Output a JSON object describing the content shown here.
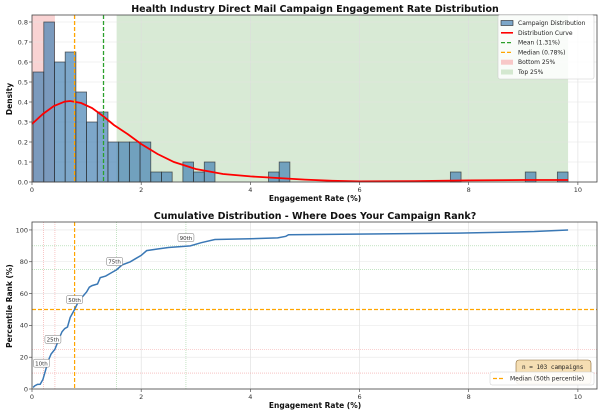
{
  "chart_data": [
    {
      "type": "bar",
      "title": "Health Industry Direct Mail Campaign Engagement Rate Distribution",
      "xlabel": "Engagement Rate (%)",
      "ylabel": "Density",
      "xlim": [
        0,
        10.35
      ],
      "ylim": [
        0,
        0.835
      ],
      "xticks": [
        0,
        2,
        4,
        6,
        8,
        10
      ],
      "yticks": [
        0.0,
        0.1,
        0.2,
        0.3,
        0.4,
        0.5,
        0.6,
        0.7,
        0.8
      ],
      "grid": true,
      "legend_position": "top-right",
      "histogram": {
        "bin_start": 0.02,
        "bin_width": 0.196,
        "densities": [
          0.55,
          0.8,
          0.6,
          0.65,
          0.45,
          0.3,
          0.35,
          0.2,
          0.2,
          0.2,
          0.2,
          0.05,
          0.05,
          0,
          0.1,
          0.05,
          0.1,
          0,
          0,
          0,
          0,
          0,
          0.05,
          0.1,
          0,
          0,
          0,
          0,
          0,
          0,
          0,
          0,
          0,
          0,
          0,
          0,
          0,
          0,
          0,
          0.05,
          0,
          0,
          0,
          0,
          0,
          0,
          0.05,
          0,
          0,
          0.05
        ],
        "color": "#4682b4"
      },
      "curve": {
        "x": [
          0,
          0.2,
          0.4,
          0.6,
          0.7,
          0.9,
          1.1,
          1.3,
          1.5,
          1.75,
          2.0,
          2.3,
          2.6,
          3.0,
          3.5,
          4.0,
          4.5,
          5.0,
          5.5,
          6.0,
          7.0,
          8.0,
          9.0,
          9.82
        ],
        "y": [
          0.29,
          0.34,
          0.38,
          0.402,
          0.405,
          0.395,
          0.37,
          0.33,
          0.285,
          0.24,
          0.19,
          0.14,
          0.1,
          0.065,
          0.04,
          0.028,
          0.02,
          0.012,
          0.006,
          0.003,
          0.004,
          0.008,
          0.01,
          0.01
        ],
        "color": "#ff0000"
      },
      "mean": 1.31,
      "median": 0.78,
      "bottom_25_range": [
        0,
        0.42
      ],
      "top_25_range": [
        1.55,
        9.82
      ],
      "legend": [
        "Campaign Distribution",
        "Distribution Curve",
        "Mean (1.31%)",
        "Median (0.78%)",
        "Bottom 25%",
        "Top 25%"
      ],
      "colors": {
        "mean": "#2ca02c",
        "median": "#ffa500",
        "bottom": "#f8c8c8",
        "top": "#d4e8d0"
      }
    },
    {
      "type": "line",
      "title": "Cumulative Distribution - Where Does Your Campaign Rank?",
      "xlabel": "Engagement Rate (%)",
      "ylabel": "Percentile Rank (%)",
      "xlim": [
        0,
        10.35
      ],
      "ylim": [
        0,
        105
      ],
      "xticks": [
        0,
        2,
        4,
        6,
        8,
        10
      ],
      "yticks": [
        0,
        20,
        40,
        60,
        80,
        100
      ],
      "grid": true,
      "legend_position": "bottom-right",
      "series": {
        "x": [
          0.02,
          0.05,
          0.1,
          0.15,
          0.2,
          0.25,
          0.3,
          0.35,
          0.42,
          0.5,
          0.55,
          0.6,
          0.65,
          0.7,
          0.78,
          0.85,
          0.95,
          1.0,
          1.05,
          1.1,
          1.2,
          1.25,
          1.35,
          1.45,
          1.55,
          1.65,
          1.8,
          1.9,
          2.0,
          2.1,
          2.3,
          2.5,
          2.9,
          3.1,
          3.35,
          4.0,
          4.5,
          4.65,
          4.7,
          7.8,
          9.2,
          9.82
        ],
        "y": [
          1,
          2,
          2.9,
          3,
          6,
          12,
          18,
          22,
          25,
          32,
          36,
          38,
          39,
          45,
          50,
          55,
          59,
          61,
          64,
          65,
          66,
          70,
          71,
          73,
          75,
          78,
          80,
          82,
          84,
          87,
          88,
          89,
          90,
          92,
          94,
          94.5,
          95,
          96,
          97,
          98,
          99,
          100
        ],
        "color": "#3a78b5"
      },
      "percentile_markers": [
        {
          "label": "10th",
          "x": 0.21,
          "y": 10
        },
        {
          "label": "25th",
          "x": 0.42,
          "y": 25
        },
        {
          "label": "50th",
          "x": 0.78,
          "y": 50
        },
        {
          "label": "75th",
          "x": 1.55,
          "y": 75
        },
        {
          "label": "90th",
          "x": 2.82,
          "y": 90
        }
      ],
      "median_line": 50,
      "legend": [
        "Median (50th percentile)"
      ],
      "stats_box": "n = 103 campaigns"
    }
  ]
}
